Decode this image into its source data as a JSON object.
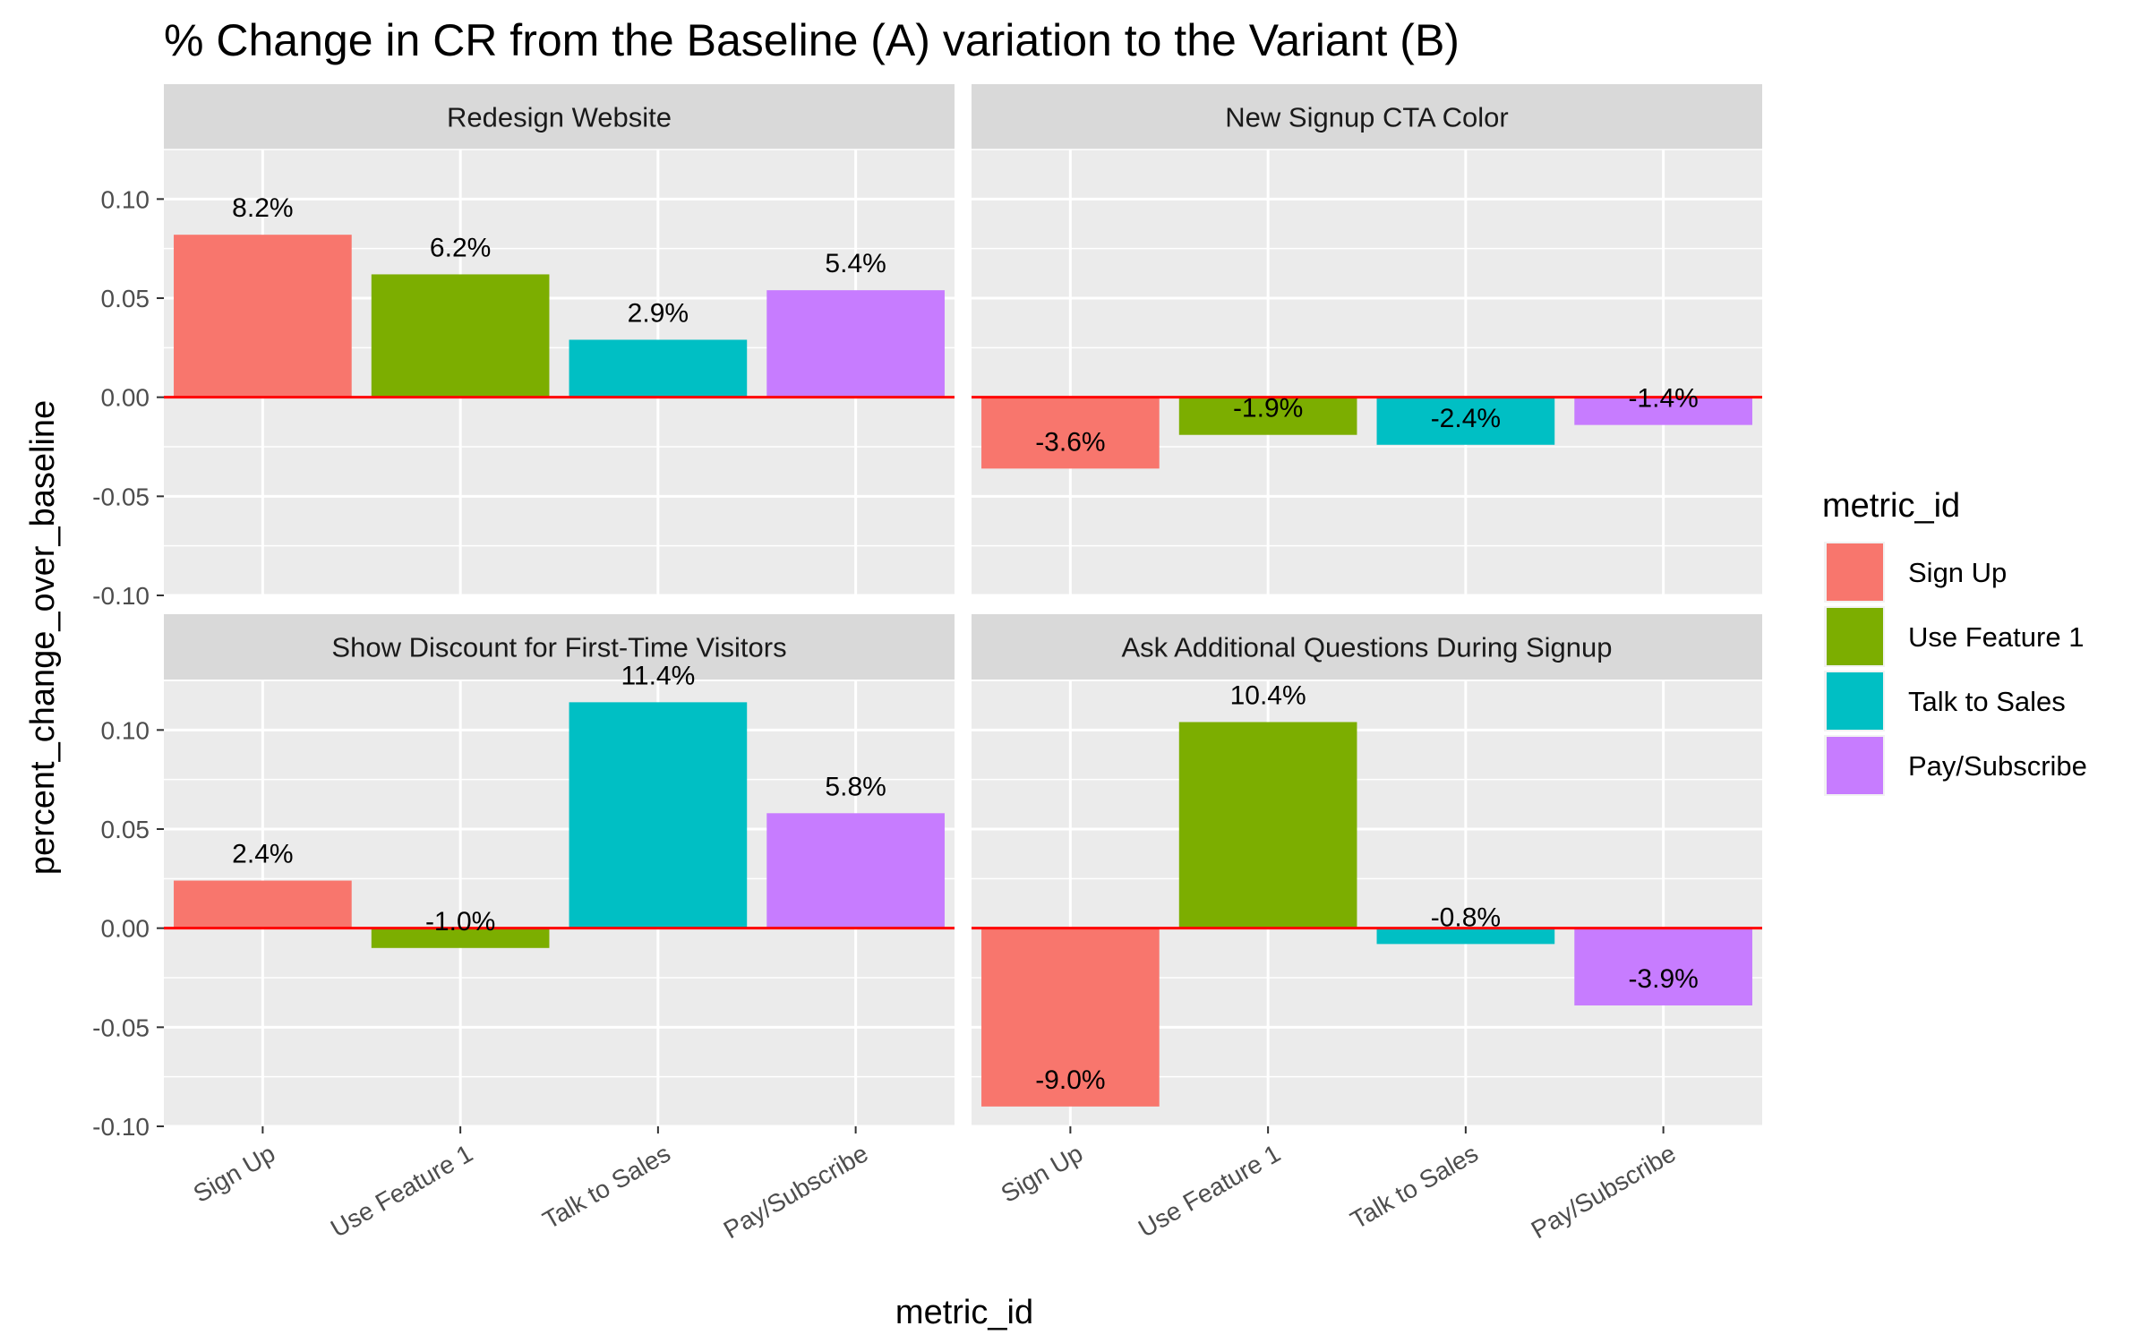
{
  "chart_data": {
    "type": "bar",
    "title": "% Change in CR from the Baseline (A) variation to the Variant (B)",
    "xlabel": "metric_id",
    "ylabel": "percent_change_over_baseline",
    "ylim": [
      -0.1,
      0.125
    ],
    "yticks": [
      -0.1,
      -0.05,
      0.0,
      0.05,
      0.1
    ],
    "ytick_labels": [
      "-0.10",
      "-0.05",
      "0.00",
      "0.05",
      "0.10"
    ],
    "categories": [
      "Sign Up",
      "Use Feature 1",
      "Talk to Sales",
      "Pay/Subscribe"
    ],
    "colors": [
      "#F8766D",
      "#7CAE00",
      "#00BFC4",
      "#C77CFF"
    ],
    "reference_line": {
      "y": 0,
      "color": "#FF0000"
    },
    "grid": true,
    "legend": {
      "title": "metric_id",
      "position": "right",
      "entries": [
        "Sign Up",
        "Use Feature 1",
        "Talk to Sales",
        "Pay/Subscribe"
      ]
    },
    "facets": [
      {
        "name": "Redesign Website",
        "values": [
          0.082,
          0.062,
          0.029,
          0.054
        ],
        "labels": [
          "8.2%",
          "6.2%",
          "2.9%",
          "5.4%"
        ]
      },
      {
        "name": "New Signup CTA Color",
        "values": [
          -0.036,
          -0.019,
          -0.024,
          -0.014
        ],
        "labels": [
          "-3.6%",
          "-1.9%",
          "-2.4%",
          "-1.4%"
        ]
      },
      {
        "name": "Show Discount for First-Time Visitors",
        "values": [
          0.024,
          -0.01,
          0.114,
          0.058
        ],
        "labels": [
          "2.4%",
          "-1.0%",
          "11.4%",
          "5.8%"
        ]
      },
      {
        "name": "Ask Additional Questions During Signup",
        "values": [
          -0.09,
          0.104,
          -0.008,
          -0.039
        ],
        "labels": [
          "-9.0%",
          "10.4%",
          "-0.8%",
          "-3.9%"
        ]
      }
    ]
  }
}
